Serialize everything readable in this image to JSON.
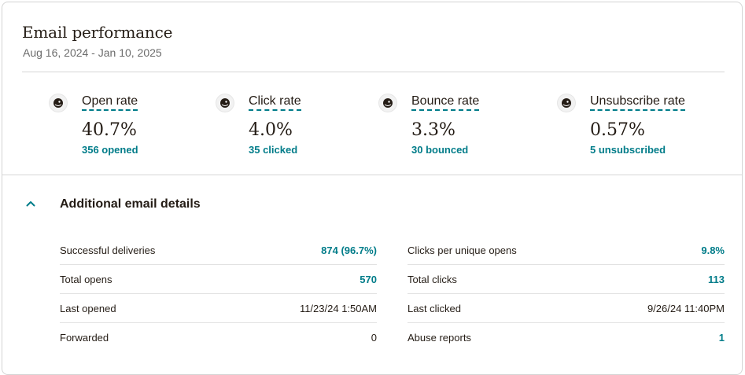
{
  "header": {
    "title": "Email performance",
    "date_range": "Aug 16, 2024 - Jan 10, 2025"
  },
  "metrics": [
    {
      "icon": "mailchimp-freddie-icon",
      "label": "Open rate",
      "value": "40.7%",
      "sub": "356 opened"
    },
    {
      "icon": "mailchimp-freddie-icon",
      "label": "Click rate",
      "value": "4.0%",
      "sub": "35 clicked"
    },
    {
      "icon": "mailchimp-freddie-icon",
      "label": "Bounce rate",
      "value": "3.3%",
      "sub": "30 bounced"
    },
    {
      "icon": "mailchimp-freddie-icon",
      "label": "Unsubscribe rate",
      "value": "0.57%",
      "sub": "5 unsubscribed"
    }
  ],
  "details": {
    "title": "Additional email details",
    "toggle_icon": "chevron-up-icon",
    "left": [
      {
        "label": "Successful deliveries",
        "value": "874 (96.7%)",
        "link": true
      },
      {
        "label": "Total opens",
        "value": "570",
        "link": true
      },
      {
        "label": "Last opened",
        "value": "11/23/24 1:50AM",
        "link": false
      },
      {
        "label": "Forwarded",
        "value": "0",
        "link": false
      }
    ],
    "right": [
      {
        "label": "Clicks per unique opens",
        "value": "9.8%",
        "link": true
      },
      {
        "label": "Total clicks",
        "value": "113",
        "link": true
      },
      {
        "label": "Last clicked",
        "value": "9/26/24 11:40PM",
        "link": false
      },
      {
        "label": "Abuse reports",
        "value": "1",
        "link": true
      }
    ]
  },
  "colors": {
    "accent": "#007c89",
    "text": "#241c15",
    "muted": "#6b6b6b",
    "divider": "#d6d6d6"
  }
}
